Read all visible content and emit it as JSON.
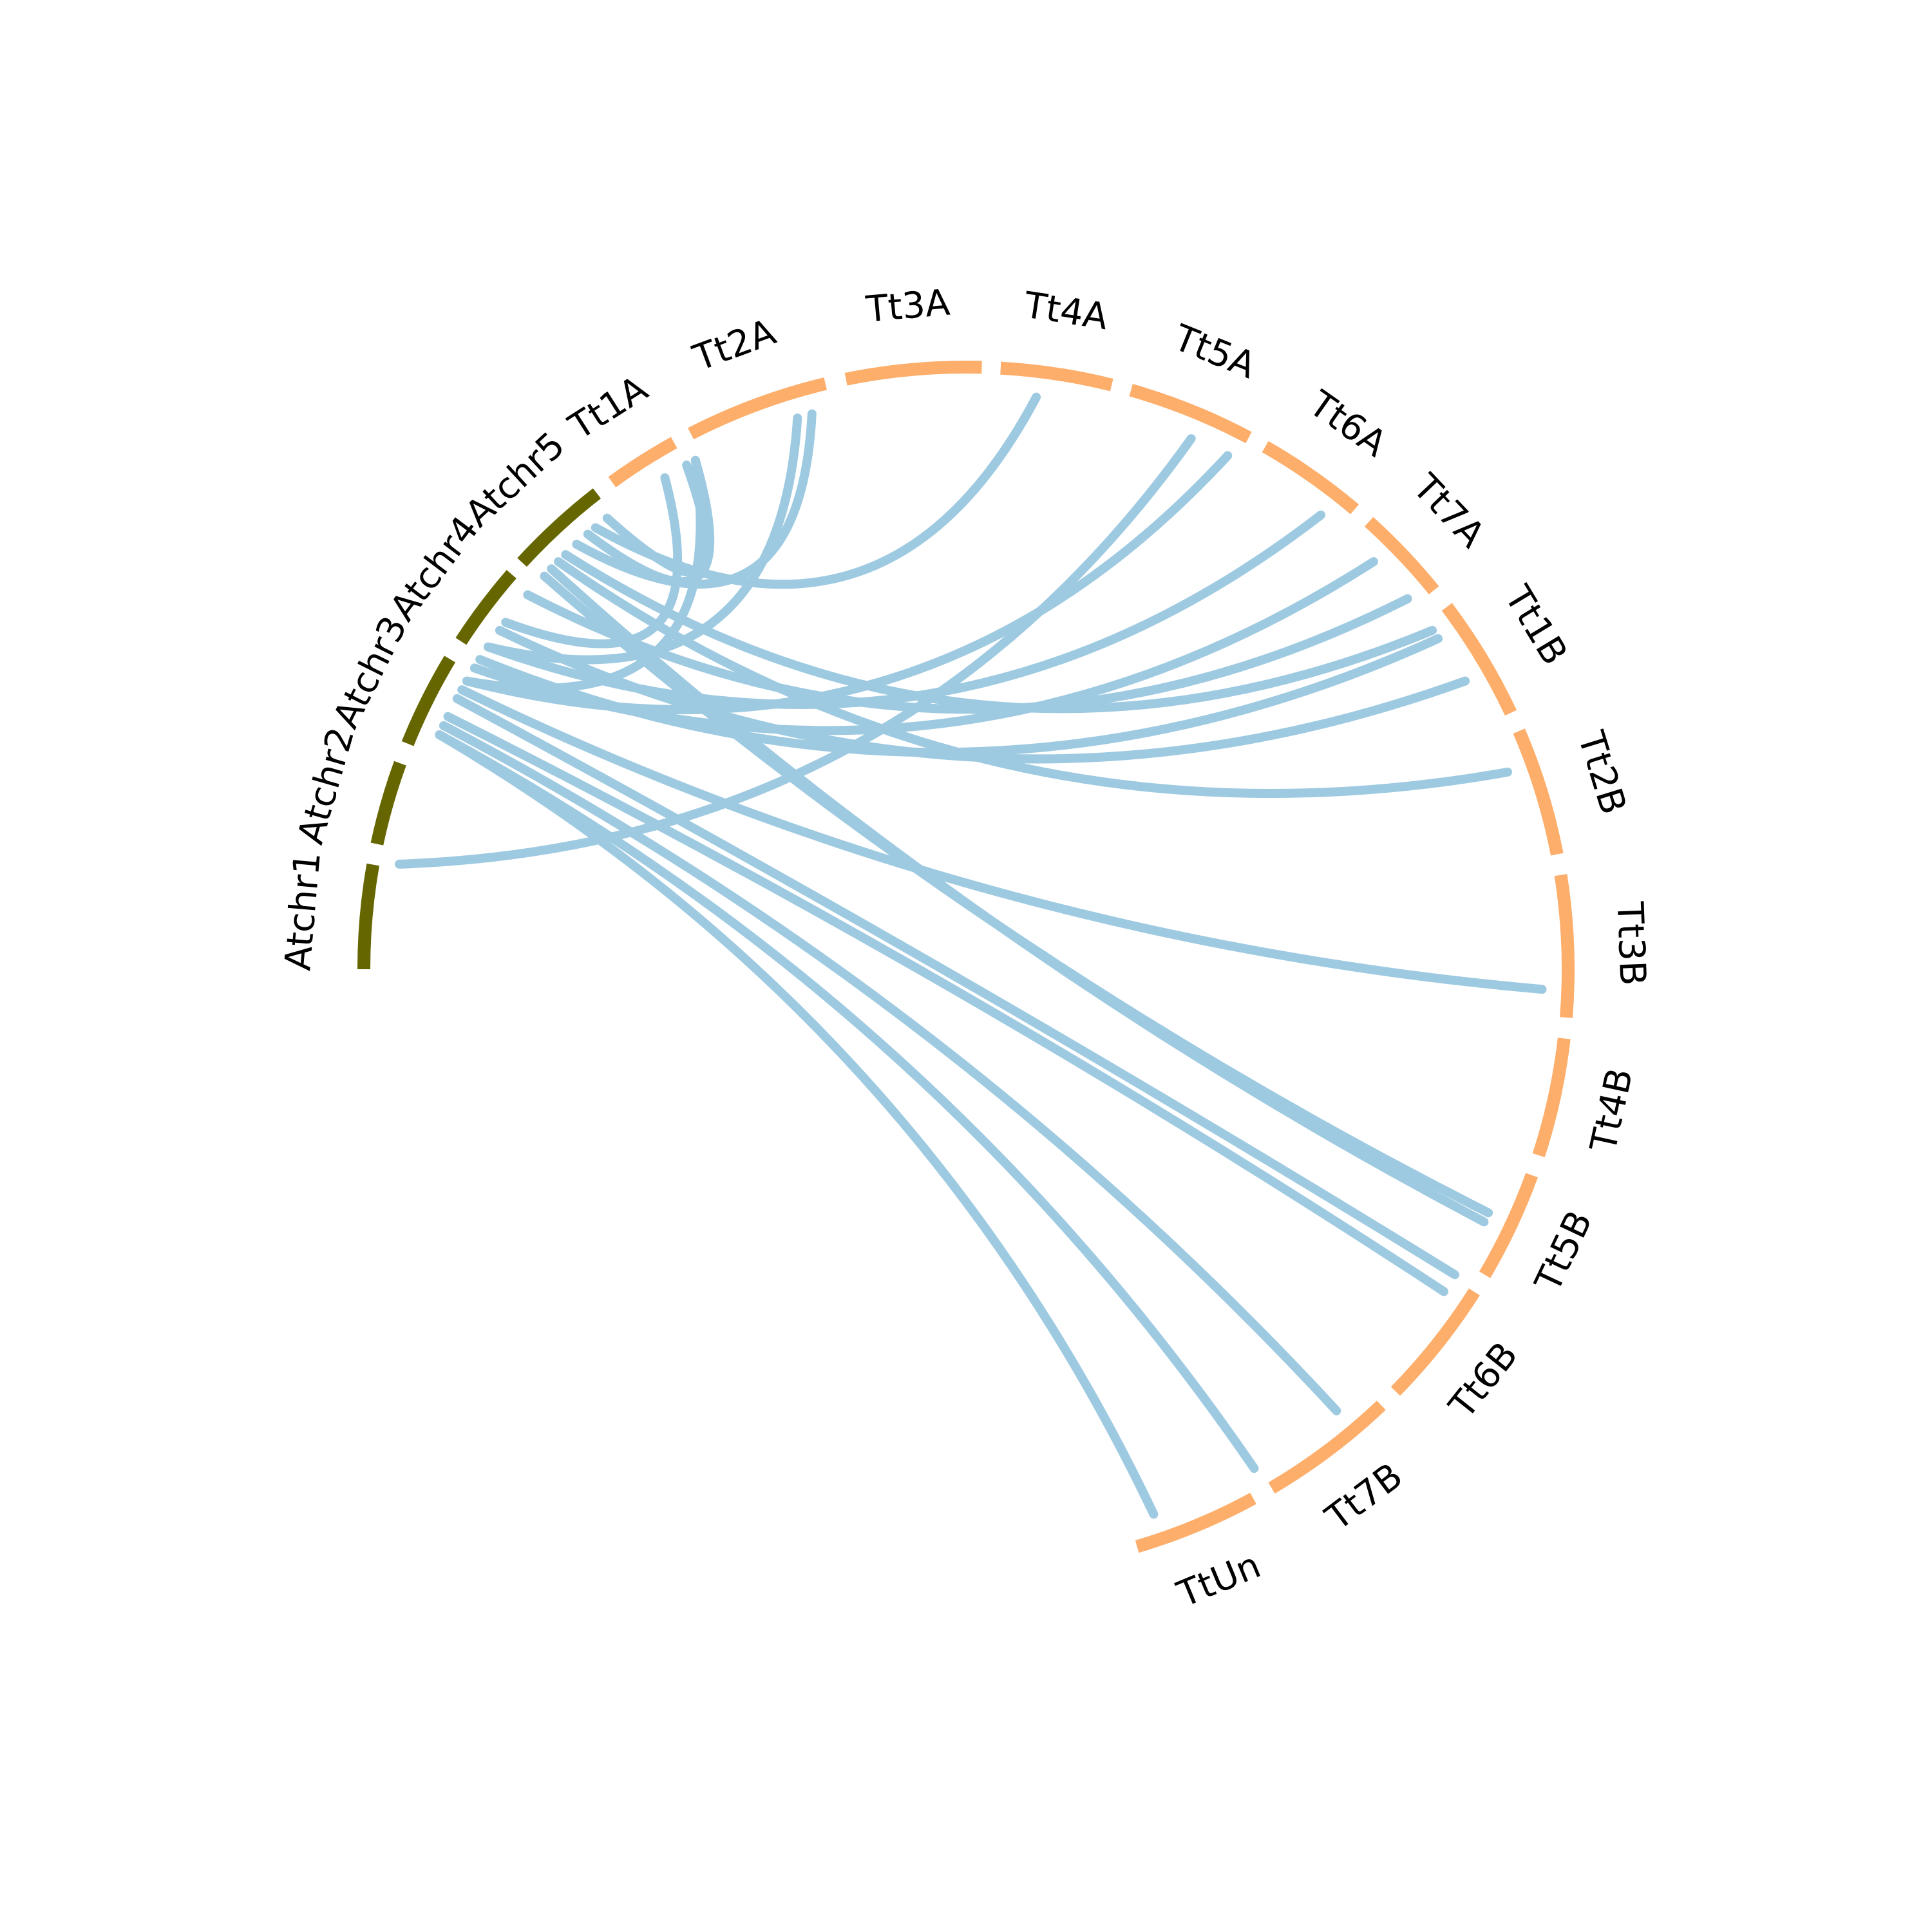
{
  "colors": {
    "arabidopsis": "#666600",
    "wheat": "#fdae6b",
    "link": "#9ecae1",
    "background": "#ffffff"
  },
  "chromosomes": [
    {
      "id": "Atchr1",
      "label": "Atchr1",
      "group": "arabidopsis",
      "start_deg": -90.0,
      "end_deg": -80.0
    },
    {
      "id": "Atchr2",
      "label": "Atchr2",
      "group": "arabidopsis",
      "start_deg": -78.0,
      "end_deg": -70.0
    },
    {
      "id": "Atchr3",
      "label": "Atchr3",
      "group": "arabidopsis",
      "start_deg": -68.0,
      "end_deg": -59.0
    },
    {
      "id": "Atchr4",
      "label": "Atchr4",
      "group": "arabidopsis",
      "start_deg": -57.0,
      "end_deg": -49.0
    },
    {
      "id": "Atchr5",
      "label": "Atchr5",
      "group": "arabidopsis",
      "start_deg": -47.5,
      "end_deg": -37.8
    },
    {
      "id": "Tt1A",
      "label": "Tt1A",
      "group": "wheat",
      "start_deg": -36.0,
      "end_deg": -29.0
    },
    {
      "id": "Tt2A",
      "label": "Tt2A",
      "group": "wheat",
      "start_deg": -27.2,
      "end_deg": -13.5
    },
    {
      "id": "Tt3A",
      "label": "Tt3A",
      "group": "wheat",
      "start_deg": -11.5,
      "end_deg": 1.5
    },
    {
      "id": "Tt4A",
      "label": "Tt4A",
      "group": "wheat",
      "start_deg": 3.3,
      "end_deg": 14.0
    },
    {
      "id": "Tt5A",
      "label": "Tt5A",
      "group": "wheat",
      "start_deg": 15.9,
      "end_deg": 28.0
    },
    {
      "id": "Tt6A",
      "label": "Tt6A",
      "group": "wheat",
      "start_deg": 29.8,
      "end_deg": 40.2
    },
    {
      "id": "Tt7A",
      "label": "Tt7A",
      "group": "wheat",
      "start_deg": 42.0,
      "end_deg": 51.0
    },
    {
      "id": "Tt1B",
      "label": "Tt1B",
      "group": "wheat",
      "start_deg": 53.0,
      "end_deg": 64.8
    },
    {
      "id": "Tt2B",
      "label": "Tt2B",
      "group": "wheat",
      "start_deg": 66.7,
      "end_deg": 79.0
    },
    {
      "id": "Tt3B",
      "label": "Tt3B",
      "group": "wheat",
      "start_deg": 81.0,
      "end_deg": 94.6
    },
    {
      "id": "Tt4B",
      "label": "Tt4B",
      "group": "wheat",
      "start_deg": 96.6,
      "end_deg": 108.0
    },
    {
      "id": "Tt5B",
      "label": "Tt5B",
      "group": "wheat",
      "start_deg": 110.0,
      "end_deg": 120.5
    },
    {
      "id": "Tt6B",
      "label": "Tt6B",
      "group": "wheat",
      "start_deg": 122.4,
      "end_deg": 134.5
    },
    {
      "id": "Tt7B",
      "label": "Tt7B",
      "group": "wheat",
      "start_deg": 136.4,
      "end_deg": 149.5
    },
    {
      "id": "TtUn",
      "label": "TtUn",
      "group": "wheat",
      "start_deg": 151.5,
      "end_deg": 163.5
    }
  ],
  "links": [
    {
      "from_deg": -79.5,
      "to_deg": 23.0
    },
    {
      "from_deg": -66.0,
      "to_deg": 161.0
    },
    {
      "from_deg": -66.0,
      "to_deg": 150.0
    },
    {
      "from_deg": -65.0,
      "to_deg": 140.0
    },
    {
      "from_deg": -64.0,
      "to_deg": 124.0
    },
    {
      "from_deg": -62.0,
      "to_deg": 122.0
    },
    {
      "from_deg": -61.0,
      "to_deg": 92.0
    },
    {
      "from_deg": -60.0,
      "to_deg": -28.0
    },
    {
      "from_deg": -60.0,
      "to_deg": 27.0
    },
    {
      "from_deg": -58.5,
      "to_deg": 45.0
    },
    {
      "from_deg": -57.5,
      "to_deg": 55.0
    },
    {
      "from_deg": -56.0,
      "to_deg": -17.0
    },
    {
      "from_deg": -56.0,
      "to_deg": 38.0
    },
    {
      "from_deg": -54.0,
      "to_deg": 60.0
    },
    {
      "from_deg": -53.0,
      "to_deg": -31.5
    },
    {
      "from_deg": -49.5,
      "to_deg": 50.0
    },
    {
      "from_deg": -47.0,
      "to_deg": 115.0
    },
    {
      "from_deg": -46.0,
      "to_deg": 116.0
    },
    {
      "from_deg": -45.0,
      "to_deg": 70.0
    },
    {
      "from_deg": -44.0,
      "to_deg": 54.0
    },
    {
      "from_deg": -42.5,
      "to_deg": -15.5
    },
    {
      "from_deg": -41.0,
      "to_deg": -28.0
    },
    {
      "from_deg": -40.0,
      "to_deg": 7.0
    },
    {
      "from_deg": -38.5,
      "to_deg": -29.0
    }
  ]
}
